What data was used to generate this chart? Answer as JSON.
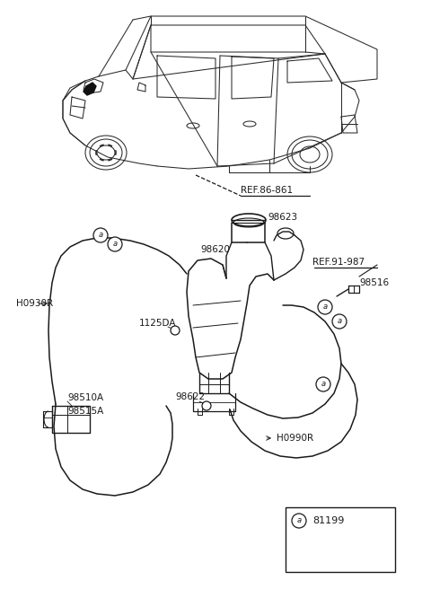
{
  "bg_color": "#ffffff",
  "line_color": "#1a1a1a",
  "text_color": "#1a1a1a",
  "figsize": [
    4.8,
    6.56
  ],
  "dpi": 100,
  "labels": {
    "REF_86_861": "REF.86-861",
    "REF_91_987": "REF.91-987",
    "98623": "98623",
    "98620": "98620",
    "98516": "98516",
    "H0930R": "H0930R",
    "1125DA": "1125DA",
    "98510A": "98510A",
    "98515A": "98515A",
    "98622": "98622",
    "H0990R": "H0990R",
    "81199": "81199"
  }
}
